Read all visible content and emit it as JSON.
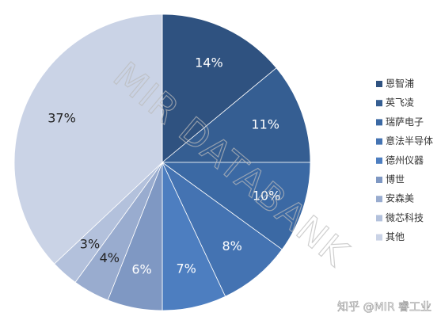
{
  "chart_data": {
    "type": "pie",
    "categories": [
      "恩智浦",
      "英飞凌",
      "瑞萨电子",
      "意法半导体",
      "德州仪器",
      "博世",
      "安森美",
      "微芯科技",
      "其他"
    ],
    "values": [
      14,
      11,
      10,
      8,
      7,
      6,
      4,
      3,
      37
    ],
    "value_labels": [
      "14%",
      "11%",
      "10%",
      "8%",
      "7%",
      "6%",
      "4%",
      "3%",
      "37%"
    ],
    "colors": [
      "#2f5280",
      "#355e92",
      "#3b69a4",
      "#4473b2",
      "#4d7ec0",
      "#7f98c3",
      "#99accf",
      "#b3c1dc",
      "#cad3e6"
    ],
    "legend": "right",
    "watermark": "MIR DATABANK",
    "credit": "知乎 @MIR 睿工业"
  }
}
